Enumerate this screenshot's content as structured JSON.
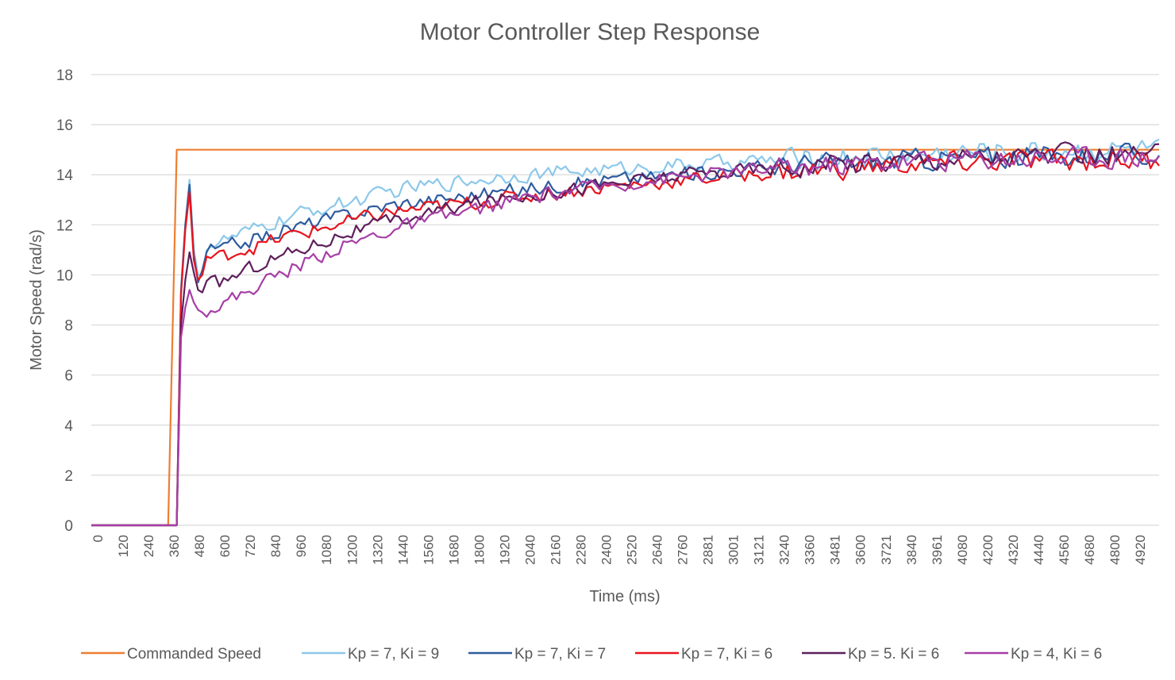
{
  "chart_data": {
    "type": "line",
    "title": "Motor Controller Step Response",
    "xlabel": "Time (ms)",
    "ylabel": "Motor Speed (rad/s)",
    "ylim": [
      0,
      18
    ],
    "yticks": [
      0,
      2,
      4,
      6,
      8,
      10,
      12,
      14,
      16,
      18
    ],
    "xtick_labels": [
      "0",
      "120",
      "240",
      "360",
      "480",
      "600",
      "720",
      "840",
      "960",
      "1080",
      "1200",
      "1320",
      "1440",
      "1560",
      "1680",
      "1800",
      "1920",
      "2040",
      "2160",
      "2280",
      "2400",
      "2520",
      "2640",
      "2760",
      "2881",
      "3001",
      "3121",
      "3240",
      "3360",
      "3481",
      "3600",
      "3721",
      "3840",
      "3961",
      "4080",
      "4200",
      "4320",
      "4440",
      "4560",
      "4680",
      "4800",
      "4920"
    ],
    "grid": "horizontal",
    "legend_position": "bottom",
    "series": [
      {
        "name": "Commanded Speed",
        "color": "#ED7D31",
        "points": [
          [
            0,
            0
          ],
          [
            360,
            0
          ],
          [
            400,
            15
          ],
          [
            5000,
            15
          ]
        ]
      },
      {
        "name": "Kp = 7, Ki = 9",
        "color": "#8CC8EA",
        "points": [
          [
            0,
            0
          ],
          [
            400,
            0
          ],
          [
            420,
            9.5
          ],
          [
            440,
            12.0
          ],
          [
            460,
            13.8
          ],
          [
            480,
            11.0
          ],
          [
            500,
            10.0
          ],
          [
            520,
            10.0
          ],
          [
            540,
            11.2
          ],
          [
            600,
            11.3
          ],
          [
            700,
            11.6
          ],
          [
            800,
            11.9
          ],
          [
            900,
            12.2
          ],
          [
            1000,
            12.5
          ],
          [
            1100,
            12.7
          ],
          [
            1200,
            12.9
          ],
          [
            1300,
            13.1
          ],
          [
            1400,
            13.3
          ],
          [
            1500,
            13.5
          ],
          [
            1600,
            13.6
          ],
          [
            1700,
            13.7
          ],
          [
            1800,
            13.8
          ],
          [
            1900,
            13.9
          ],
          [
            2000,
            14.0
          ],
          [
            2200,
            14.1
          ],
          [
            2400,
            14.2
          ],
          [
            2600,
            14.3
          ],
          [
            2800,
            14.4
          ],
          [
            3000,
            14.5
          ],
          [
            3200,
            14.6
          ],
          [
            3500,
            14.7
          ],
          [
            3800,
            14.8
          ],
          [
            4100,
            14.9
          ],
          [
            4400,
            14.95
          ],
          [
            5000,
            15.0
          ]
        ]
      },
      {
        "name": "Kp = 7, Ki = 7",
        "color": "#2E5C9E",
        "points": [
          [
            0,
            0
          ],
          [
            400,
            0
          ],
          [
            420,
            9.3
          ],
          [
            440,
            12.0
          ],
          [
            460,
            13.6
          ],
          [
            480,
            10.8
          ],
          [
            500,
            9.7
          ],
          [
            520,
            10.2
          ],
          [
            540,
            11.0
          ],
          [
            600,
            11.0
          ],
          [
            700,
            11.3
          ],
          [
            800,
            11.5
          ],
          [
            900,
            11.8
          ],
          [
            1000,
            12.0
          ],
          [
            1100,
            12.2
          ],
          [
            1200,
            12.4
          ],
          [
            1300,
            12.6
          ],
          [
            1400,
            12.8
          ],
          [
            1500,
            12.9
          ],
          [
            1600,
            13.0
          ],
          [
            1700,
            13.1
          ],
          [
            1800,
            13.2
          ],
          [
            1900,
            13.3
          ],
          [
            2000,
            13.4
          ],
          [
            2200,
            13.6
          ],
          [
            2400,
            13.8
          ],
          [
            2600,
            13.9
          ],
          [
            2800,
            14.05
          ],
          [
            3000,
            14.2
          ],
          [
            3200,
            14.35
          ],
          [
            3500,
            14.5
          ],
          [
            3800,
            14.6
          ],
          [
            4100,
            14.7
          ],
          [
            4400,
            14.75
          ],
          [
            5000,
            14.8
          ]
        ]
      },
      {
        "name": "Kp = 7, Ki = 6",
        "color": "#E8141E",
        "points": [
          [
            0,
            0
          ],
          [
            400,
            0
          ],
          [
            420,
            9.2
          ],
          [
            440,
            11.8
          ],
          [
            460,
            13.3
          ],
          [
            480,
            10.6
          ],
          [
            500,
            9.8
          ],
          [
            520,
            10.0
          ],
          [
            540,
            10.7
          ],
          [
            600,
            10.7
          ],
          [
            700,
            11.0
          ],
          [
            800,
            11.2
          ],
          [
            900,
            11.5
          ],
          [
            1000,
            11.7
          ],
          [
            1100,
            11.9
          ],
          [
            1200,
            12.1
          ],
          [
            1300,
            12.3
          ],
          [
            1400,
            12.5
          ],
          [
            1500,
            12.6
          ],
          [
            1600,
            12.7
          ],
          [
            1700,
            12.8
          ],
          [
            1800,
            12.9
          ],
          [
            1900,
            13.0
          ],
          [
            2000,
            13.1
          ],
          [
            2200,
            13.3
          ],
          [
            2400,
            13.5
          ],
          [
            2600,
            13.65
          ],
          [
            2800,
            13.8
          ],
          [
            3000,
            13.95
          ],
          [
            3200,
            14.1
          ],
          [
            3500,
            14.25
          ],
          [
            3800,
            14.4
          ],
          [
            4100,
            14.5
          ],
          [
            4400,
            14.55
          ],
          [
            5000,
            14.6
          ]
        ]
      },
      {
        "name": "Kp = 5. Ki = 6",
        "color": "#5E1E5C",
        "points": [
          [
            0,
            0
          ],
          [
            400,
            0
          ],
          [
            420,
            8.0
          ],
          [
            440,
            9.8
          ],
          [
            460,
            10.9
          ],
          [
            480,
            10.1
          ],
          [
            500,
            9.4
          ],
          [
            520,
            9.3
          ],
          [
            540,
            9.6
          ],
          [
            600,
            9.7
          ],
          [
            700,
            10.1
          ],
          [
            800,
            10.5
          ],
          [
            900,
            10.8
          ],
          [
            1000,
            11.1
          ],
          [
            1100,
            11.4
          ],
          [
            1200,
            11.7
          ],
          [
            1300,
            11.9
          ],
          [
            1400,
            12.1
          ],
          [
            1500,
            12.3
          ],
          [
            1600,
            12.5
          ],
          [
            1700,
            12.7
          ],
          [
            1800,
            12.9
          ],
          [
            1900,
            13.0
          ],
          [
            2000,
            13.15
          ],
          [
            2200,
            13.4
          ],
          [
            2400,
            13.6
          ],
          [
            2600,
            13.8
          ],
          [
            2800,
            14.0
          ],
          [
            3000,
            14.15
          ],
          [
            3200,
            14.3
          ],
          [
            3500,
            14.45
          ],
          [
            3800,
            14.6
          ],
          [
            4100,
            14.7
          ],
          [
            4400,
            14.75
          ],
          [
            5000,
            14.8
          ]
        ]
      },
      {
        "name": "Kp = 4, Ki = 6",
        "color": "#A63FA6",
        "points": [
          [
            0,
            0
          ],
          [
            400,
            0
          ],
          [
            420,
            7.5
          ],
          [
            440,
            8.7
          ],
          [
            460,
            9.4
          ],
          [
            480,
            8.9
          ],
          [
            500,
            8.6
          ],
          [
            520,
            8.5
          ],
          [
            540,
            8.6
          ],
          [
            600,
            8.8
          ],
          [
            700,
            9.2
          ],
          [
            800,
            9.7
          ],
          [
            900,
            10.1
          ],
          [
            1000,
            10.5
          ],
          [
            1100,
            10.9
          ],
          [
            1200,
            11.2
          ],
          [
            1300,
            11.5
          ],
          [
            1400,
            11.8
          ],
          [
            1500,
            12.0
          ],
          [
            1600,
            12.2
          ],
          [
            1700,
            12.4
          ],
          [
            1800,
            12.6
          ],
          [
            1900,
            12.8
          ],
          [
            2000,
            13.0
          ],
          [
            2200,
            13.3
          ],
          [
            2400,
            13.55
          ],
          [
            2600,
            13.75
          ],
          [
            2800,
            13.95
          ],
          [
            3000,
            14.1
          ],
          [
            3200,
            14.25
          ],
          [
            3500,
            14.4
          ],
          [
            3800,
            14.55
          ],
          [
            4100,
            14.65
          ],
          [
            4400,
            14.7
          ],
          [
            5000,
            14.75
          ]
        ]
      }
    ]
  }
}
